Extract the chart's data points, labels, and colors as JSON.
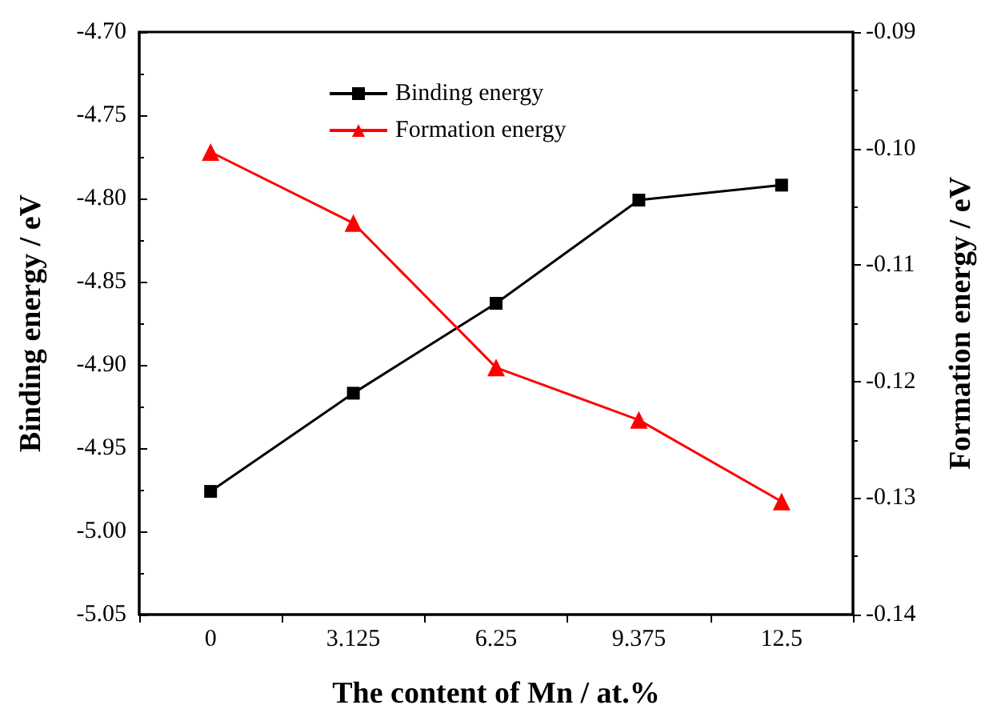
{
  "chart_data": {
    "type": "line",
    "xlabel": "The content of Mn / at.%",
    "ylabel": "Binding energy / eV",
    "y2label": "Formation energy / eV",
    "categories": [
      "0",
      "3.125",
      "6.25",
      "9.375",
      "12.5"
    ],
    "series": [
      {
        "name": "Binding energy",
        "color": "#000000",
        "marker": "square",
        "values": [
          -4.976,
          -4.917,
          -4.863,
          -4.801,
          -4.792
        ]
      },
      {
        "name": "Formation energy",
        "color": "#ff0000",
        "marker": "triangle",
        "axis": "y2",
        "values": [
          -0.1003,
          -0.1064,
          -0.1188,
          -0.1233,
          -0.1303
        ]
      }
    ],
    "ylim": [
      -5.05,
      -4.7
    ],
    "yticks": [
      -5.05,
      {
        "value": -5,
        "label": "-5.00"
      },
      -4.95,
      {
        "value": -4.9,
        "label": "-4.90"
      },
      -4.85,
      {
        "value": -4.8,
        "label": "-4.80"
      },
      -4.75,
      {
        "value": -4.7,
        "label": "-4.70"
      }
    ],
    "y2lim": [
      -0.14,
      -0.09
    ],
    "y2ticks": [
      -0.14,
      -0.13,
      -0.12,
      -0.11,
      {
        "value": -0.1,
        "label": "-0.10"
      },
      -0.09
    ],
    "legend": "top",
    "grid": false,
    "line_style": "solid"
  }
}
